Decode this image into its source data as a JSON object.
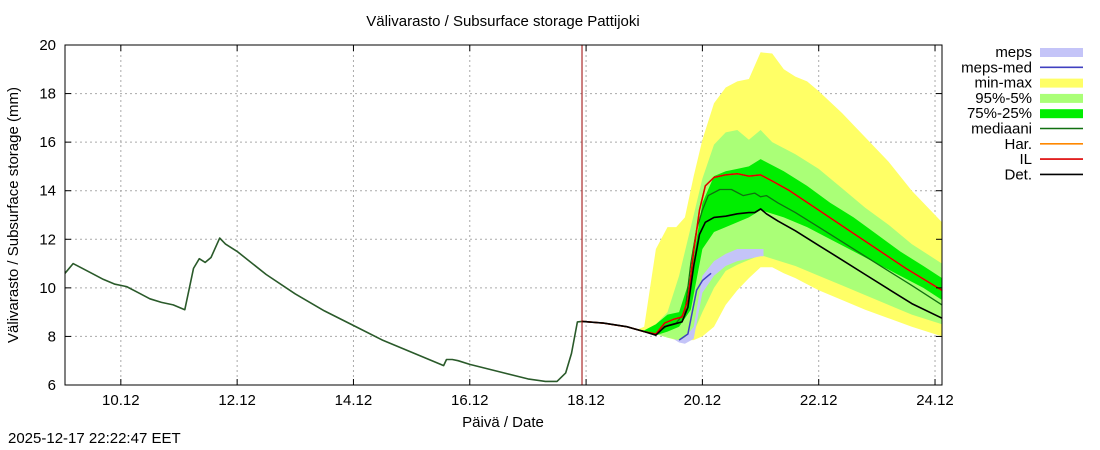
{
  "timestamp": "2025-12-17 22:22:47 EET",
  "chart_data": {
    "type": "line",
    "title": "Välivarasto / Subsurface storage  Pattijoki",
    "xlabel": "Päivä / Date",
    "ylabel": "Välivarasto / Subsurface storage (mm)",
    "xlim": [
      9.04,
      24.12
    ],
    "ylim": [
      6,
      20
    ],
    "grid": true,
    "x_unit": "day of December 2025",
    "xticks": [
      {
        "x": 10,
        "label": "10.12"
      },
      {
        "x": 12,
        "label": "12.12"
      },
      {
        "x": 14,
        "label": "14.12"
      },
      {
        "x": 16,
        "label": "16.12"
      },
      {
        "x": 18,
        "label": "18.12"
      },
      {
        "x": 20,
        "label": "20.12"
      },
      {
        "x": 22,
        "label": "22.12"
      },
      {
        "x": 24,
        "label": "24.12"
      }
    ],
    "yticks": [
      6,
      8,
      10,
      12,
      14,
      16,
      18,
      20
    ],
    "forecast_start": 17.93,
    "colors": {
      "meps": "#c4c4f8",
      "meps_med": "#4040c0",
      "min_max": "#ffff66",
      "p95_5": "#aaff77",
      "p75_25": "#00ee00",
      "mediaani": "#107010",
      "har": "#ff8800",
      "il": "#dd0000",
      "det": "#000000",
      "forecast_line": "#990000",
      "grid": "#aaaaaa"
    },
    "legend": [
      "meps",
      "meps-med",
      "min-max",
      "95%-5%",
      "75%-25%",
      "mediaani",
      "Har.",
      "IL",
      "Det."
    ],
    "legend_position": "outside-right",
    "observed": {
      "x": [
        9.04,
        9.18,
        9.3,
        9.5,
        9.7,
        9.9,
        10.0,
        10.1,
        10.3,
        10.5,
        10.7,
        10.9,
        11.1,
        11.25,
        11.35,
        11.45,
        11.55,
        11.7,
        11.8,
        12.0,
        12.5,
        13.0,
        13.5,
        14.0,
        14.5,
        15.0,
        15.5,
        15.55,
        15.6,
        15.7,
        15.8,
        16.0,
        16.5,
        17.0,
        17.3,
        17.5,
        17.65,
        17.75,
        17.85,
        17.93
      ],
      "y": [
        10.6,
        11.0,
        10.85,
        10.6,
        10.35,
        10.15,
        10.1,
        10.05,
        9.8,
        9.55,
        9.4,
        9.3,
        9.1,
        10.8,
        11.2,
        11.05,
        11.25,
        12.05,
        11.8,
        11.5,
        10.55,
        9.75,
        9.05,
        8.45,
        7.85,
        7.35,
        6.85,
        6.8,
        7.05,
        7.05,
        7.0,
        6.85,
        6.55,
        6.25,
        6.15,
        6.15,
        6.5,
        7.3,
        8.6,
        8.62
      ]
    },
    "series": [
      {
        "name": "min-max",
        "kind": "band",
        "x": [
          17.93,
          18.3,
          18.7,
          18.9,
          19.0,
          19.2,
          19.4,
          19.55,
          19.7,
          19.85,
          20.0,
          20.2,
          20.4,
          20.6,
          20.8,
          21.0,
          21.2,
          21.4,
          21.6,
          21.8,
          22.0,
          22.4,
          22.8,
          23.2,
          23.6,
          24.12
        ],
        "low": [
          8.62,
          8.55,
          8.4,
          8.3,
          8.25,
          8.1,
          7.95,
          7.85,
          7.85,
          7.85,
          8.0,
          8.4,
          9.3,
          9.9,
          10.4,
          10.85,
          10.85,
          10.6,
          10.4,
          10.15,
          9.9,
          9.5,
          9.1,
          8.75,
          8.4,
          8.0
        ],
        "high": [
          8.62,
          8.55,
          8.4,
          8.3,
          8.4,
          11.6,
          12.5,
          12.5,
          12.9,
          14.6,
          16.1,
          17.6,
          18.25,
          18.5,
          18.6,
          19.7,
          19.65,
          19.0,
          18.7,
          18.5,
          18.1,
          17.2,
          16.2,
          15.2,
          14.0,
          12.7
        ]
      },
      {
        "name": "95%-5%",
        "kind": "band",
        "x": [
          17.93,
          18.3,
          18.7,
          19.0,
          19.2,
          19.4,
          19.6,
          19.8,
          20.0,
          20.2,
          20.4,
          20.6,
          20.8,
          21.0,
          21.2,
          21.6,
          22.0,
          22.4,
          22.8,
          23.2,
          23.6,
          24.12
        ],
        "low": [
          8.62,
          8.55,
          8.4,
          8.25,
          8.1,
          7.95,
          7.85,
          7.9,
          9.0,
          10.0,
          10.7,
          10.95,
          11.15,
          11.35,
          11.2,
          10.9,
          10.5,
          10.1,
          9.7,
          9.3,
          8.9,
          8.5
        ],
        "high": [
          8.62,
          8.55,
          8.4,
          8.25,
          8.5,
          9.0,
          10.5,
          12.5,
          14.5,
          15.9,
          16.4,
          16.5,
          16.1,
          16.5,
          16.0,
          15.5,
          14.9,
          14.1,
          13.3,
          12.6,
          11.8,
          11.0
        ]
      },
      {
        "name": "75%-25%",
        "kind": "band",
        "x": [
          17.93,
          18.3,
          18.7,
          19.0,
          19.2,
          19.4,
          19.6,
          19.8,
          20.0,
          20.2,
          20.4,
          20.6,
          20.8,
          21.0,
          21.4,
          21.8,
          22.2,
          22.6,
          23.0,
          23.4,
          23.8,
          24.12
        ],
        "low": [
          8.62,
          8.55,
          8.4,
          8.2,
          8.05,
          8.2,
          8.4,
          9.1,
          11.6,
          12.3,
          12.5,
          12.7,
          12.9,
          13.2,
          12.9,
          12.5,
          12.0,
          11.5,
          11.0,
          10.5,
          10.0,
          9.5
        ],
        "high": [
          8.62,
          8.55,
          8.4,
          8.25,
          8.5,
          8.9,
          9.0,
          10.5,
          13.5,
          14.6,
          14.8,
          14.9,
          15.0,
          15.3,
          14.8,
          14.2,
          13.5,
          12.9,
          12.2,
          11.5,
          10.9,
          10.4
        ]
      },
      {
        "name": "meps",
        "kind": "band",
        "x": [
          19.5,
          19.6,
          19.7,
          19.85,
          20.0,
          20.2,
          20.4,
          20.6,
          20.8,
          21.0,
          21.05
        ],
        "low": [
          7.9,
          7.75,
          7.7,
          7.9,
          9.8,
          10.5,
          10.9,
          11.1,
          11.2,
          11.3,
          11.3
        ],
        "high": [
          7.9,
          7.85,
          7.95,
          8.4,
          10.5,
          11.1,
          11.4,
          11.6,
          11.6,
          11.6,
          11.6
        ]
      },
      {
        "name": "meps-med",
        "kind": "line",
        "x": [
          19.6,
          19.75,
          19.9,
          20.0,
          20.1,
          20.15
        ],
        "y": [
          7.85,
          8.1,
          9.9,
          10.3,
          10.5,
          10.6
        ]
      },
      {
        "name": "mediaani",
        "kind": "line",
        "x": [
          17.93,
          18.3,
          18.7,
          19.0,
          19.2,
          19.4,
          19.55,
          19.7,
          19.8,
          19.9,
          20.0,
          20.1,
          20.3,
          20.5,
          20.7,
          20.9,
          21.0,
          21.1,
          21.3,
          21.6,
          22.0,
          22.4,
          22.8,
          23.2,
          23.6,
          24.12
        ],
        "y": [
          8.62,
          8.55,
          8.4,
          8.2,
          8.1,
          8.45,
          8.55,
          9.0,
          11.0,
          12.4,
          13.2,
          13.8,
          14.05,
          14.05,
          13.8,
          13.9,
          13.75,
          13.8,
          13.5,
          13.1,
          12.5,
          11.9,
          11.3,
          10.7,
          10.1,
          9.3
        ]
      },
      {
        "name": "Har.",
        "kind": "line",
        "x": [
          17.93,
          18.3,
          18.7,
          19.0,
          19.2,
          19.35,
          19.5,
          19.65,
          19.75,
          19.85,
          19.95,
          20.05,
          20.2,
          20.4,
          20.6,
          20.8,
          21.0,
          21.2,
          21.5,
          22.0,
          22.5,
          23.0,
          23.5,
          24.12
        ],
        "y": [
          8.62,
          8.55,
          8.4,
          8.2,
          8.1,
          8.55,
          8.7,
          8.8,
          9.5,
          11.5,
          13.2,
          14.2,
          14.55,
          14.65,
          14.7,
          14.6,
          14.65,
          14.4,
          14.0,
          13.2,
          12.4,
          11.6,
          10.8,
          9.9
        ]
      },
      {
        "name": "IL",
        "kind": "line",
        "x": [
          17.93,
          18.3,
          18.7,
          19.0,
          19.2,
          19.35,
          19.5,
          19.65,
          19.75,
          19.85,
          19.95,
          20.05,
          20.2,
          20.4,
          20.6,
          20.8,
          21.0,
          21.2,
          21.5,
          22.0,
          22.5,
          23.0,
          23.5,
          24.12
        ],
        "y": [
          8.62,
          8.55,
          8.4,
          8.2,
          8.1,
          8.55,
          8.7,
          8.8,
          9.5,
          11.5,
          13.2,
          14.2,
          14.55,
          14.65,
          14.7,
          14.6,
          14.65,
          14.4,
          14.0,
          13.2,
          12.4,
          11.6,
          10.8,
          9.9
        ]
      },
      {
        "name": "Det.",
        "kind": "line",
        "x": [
          17.93,
          18.3,
          18.7,
          19.0,
          19.2,
          19.35,
          19.5,
          19.65,
          19.75,
          19.85,
          19.95,
          20.05,
          20.2,
          20.4,
          20.6,
          20.8,
          20.9,
          21.0,
          21.1,
          21.3,
          21.6,
          22.0,
          22.4,
          22.8,
          23.2,
          23.6,
          24.12
        ],
        "y": [
          8.62,
          8.55,
          8.4,
          8.2,
          8.05,
          8.4,
          8.5,
          8.6,
          9.2,
          10.9,
          12.2,
          12.7,
          12.9,
          12.95,
          13.05,
          13.1,
          13.1,
          13.25,
          13.05,
          12.75,
          12.35,
          11.75,
          11.15,
          10.55,
          9.95,
          9.35,
          8.75
        ]
      }
    ]
  }
}
